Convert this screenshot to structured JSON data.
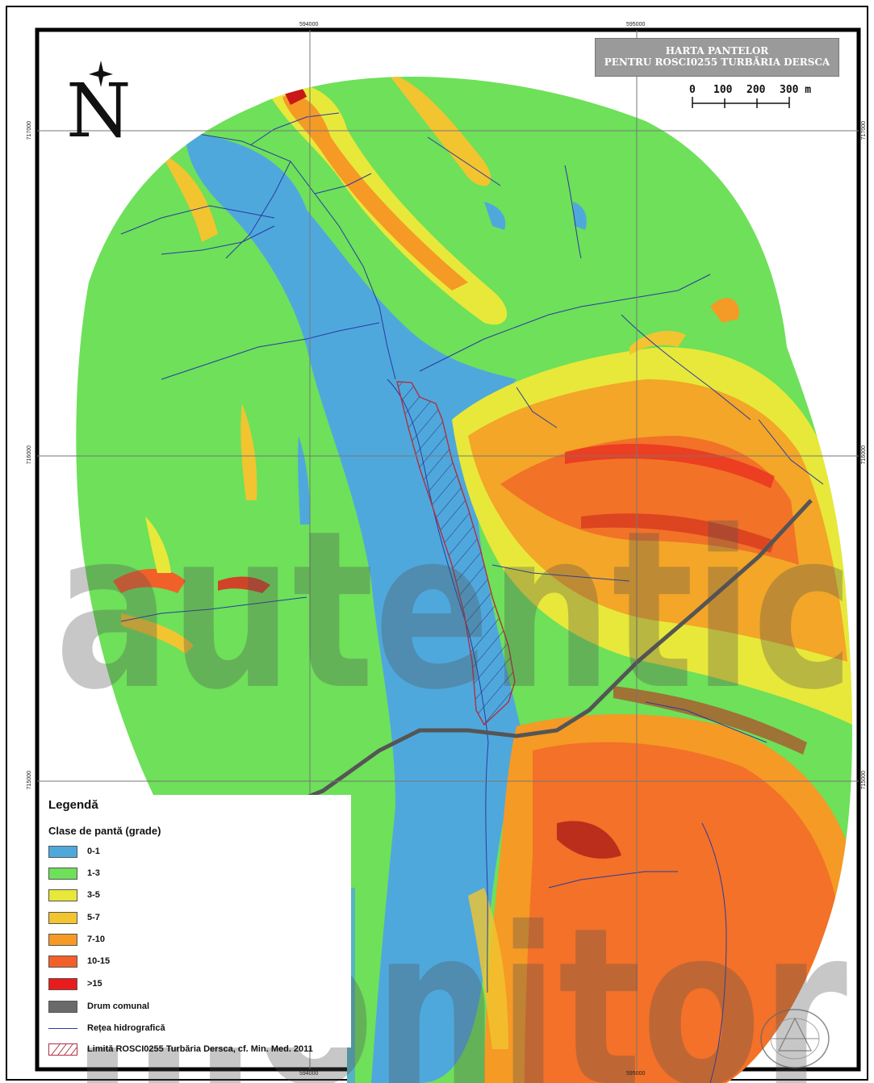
{
  "map": {
    "title_line1": "HARTA PANTELOR",
    "title_line2": "PENTRU ROSCI0255 TURBĂRIA DERSCA",
    "north_label": "N",
    "scale": {
      "labels": [
        "0",
        "100",
        "200",
        "300 m"
      ]
    },
    "grid_labels": {
      "top": [
        "594000",
        "595000"
      ],
      "bottom": [
        "594000",
        "595000"
      ],
      "left": [
        "717000",
        "716000",
        "715000"
      ],
      "right": [
        "717000",
        "716000",
        "715000"
      ]
    }
  },
  "legend": {
    "title": "Legendă",
    "subtitle": "Clase de pantă (grade)",
    "classes": [
      {
        "label": "0-1",
        "color": "#4fa8dc"
      },
      {
        "label": "1-3",
        "color": "#6ee05a"
      },
      {
        "label": "3-5",
        "color": "#e8e83a"
      },
      {
        "label": "5-7",
        "color": "#f2c430"
      },
      {
        "label": "7-10",
        "color": "#f59a25"
      },
      {
        "label": "10-15",
        "color": "#f2602a"
      },
      {
        "label": ">15",
        "color": "#e81c1c"
      }
    ],
    "road_label": "Drum comunal",
    "road_color": "#6a6a6a",
    "hydro_label": "Rețea hidrografică",
    "hydro_color": "#2a3aa0",
    "boundary_label": "Limită ROSCI0255 Turbăria Dersca, cf. Min. Med. 2011",
    "boundary_color": "#b03040"
  },
  "watermark": {
    "word1": "autentic",
    "word2": "monitor"
  }
}
